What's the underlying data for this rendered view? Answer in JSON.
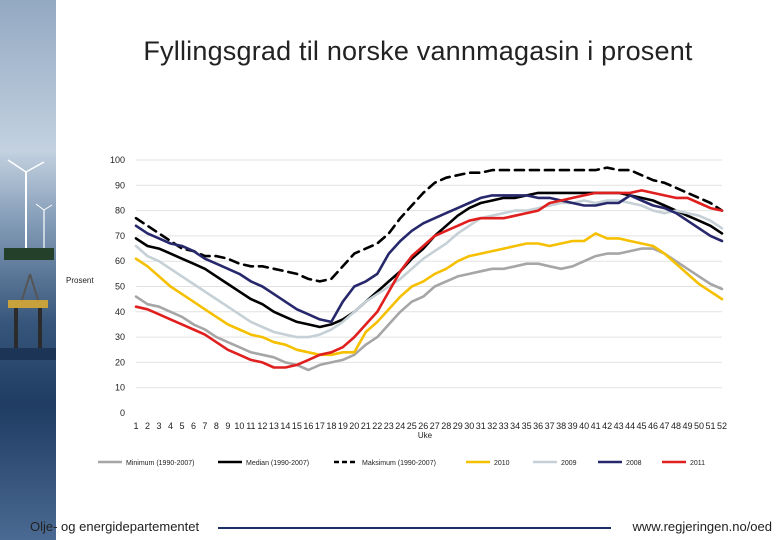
{
  "title": "Fyllingsgrad til norske vannmagasin i prosent",
  "footer": {
    "left": "Olje- og energidepartementet",
    "right": "www.regjeringen.no/oed"
  },
  "chart_data": {
    "type": "line",
    "title": "Fyllingsgrad til norske vannmagasin i prosent",
    "xlabel": "Uke",
    "ylabel": "Prosent",
    "ylim": [
      0,
      100
    ],
    "yticks": [
      0,
      10,
      20,
      30,
      40,
      50,
      60,
      70,
      80,
      90,
      100
    ],
    "x": [
      1,
      2,
      3,
      4,
      5,
      6,
      7,
      8,
      9,
      10,
      11,
      12,
      13,
      14,
      15,
      16,
      17,
      18,
      19,
      20,
      21,
      22,
      23,
      24,
      25,
      26,
      27,
      28,
      29,
      30,
      31,
      32,
      33,
      34,
      35,
      36,
      37,
      38,
      39,
      40,
      41,
      42,
      43,
      44,
      45,
      46,
      47,
      48,
      49,
      50,
      51,
      52
    ],
    "legend_position": "bottom",
    "series": [
      {
        "name": "Minimum (1990-2007)",
        "color": "#a6a6a6",
        "dash": false,
        "values": [
          46,
          43,
          42,
          40,
          38,
          35,
          33,
          30,
          28,
          26,
          24,
          23,
          22,
          20,
          19,
          17,
          19,
          20,
          21,
          23,
          27,
          30,
          35,
          40,
          44,
          46,
          50,
          52,
          54,
          55,
          56,
          57,
          57,
          58,
          59,
          59,
          58,
          57,
          58,
          60,
          62,
          63,
          63,
          64,
          65,
          65,
          63,
          60,
          57,
          54,
          51,
          49
        ]
      },
      {
        "name": "Median (1990-2007)",
        "color": "#000000",
        "dash": false,
        "values": [
          69,
          66,
          65,
          63,
          61,
          59,
          57,
          54,
          51,
          48,
          45,
          43,
          40,
          38,
          36,
          35,
          34,
          35,
          37,
          40,
          44,
          48,
          52,
          56,
          61,
          65,
          70,
          74,
          78,
          81,
          83,
          84,
          85,
          85,
          86,
          87,
          87,
          87,
          87,
          87,
          87,
          87,
          87,
          86,
          85,
          84,
          82,
          80,
          78,
          76,
          74,
          71
        ]
      },
      {
        "name": "Maksimum (1990-2007)",
        "color": "#000000",
        "dash": true,
        "values": [
          77,
          74,
          71,
          68,
          65,
          64,
          62,
          62,
          61,
          59,
          58,
          58,
          57,
          56,
          55,
          53,
          52,
          53,
          58,
          63,
          65,
          67,
          71,
          77,
          82,
          87,
          91,
          93,
          94,
          95,
          95,
          96,
          96,
          96,
          96,
          96,
          96,
          96,
          96,
          96,
          96,
          97,
          96,
          96,
          94,
          92,
          91,
          89,
          87,
          85,
          83,
          80
        ]
      },
      {
        "name": "2010",
        "color": "#f5c000",
        "dash": false,
        "values": [
          61,
          58,
          54,
          50,
          47,
          44,
          41,
          38,
          35,
          33,
          31,
          30,
          28,
          27,
          25,
          24,
          23,
          23,
          24,
          24,
          32,
          36,
          41,
          46,
          50,
          52,
          55,
          57,
          60,
          62,
          63,
          64,
          65,
          66,
          67,
          67,
          66,
          67,
          68,
          68,
          71,
          69,
          69,
          68,
          67,
          66,
          63,
          59,
          55,
          51,
          48,
          45
        ]
      },
      {
        "name": "2009",
        "color": "#c5d1d6",
        "dash": false,
        "values": [
          66,
          62,
          60,
          57,
          54,
          51,
          48,
          45,
          42,
          39,
          36,
          34,
          32,
          31,
          30,
          30,
          31,
          33,
          36,
          40,
          44,
          47,
          50,
          53,
          57,
          61,
          64,
          67,
          71,
          74,
          77,
          78,
          79,
          80,
          80,
          81,
          82,
          83,
          83,
          84,
          83,
          84,
          84,
          83,
          82,
          80,
          79,
          80,
          79,
          78,
          76,
          73
        ]
      },
      {
        "name": "2008",
        "color": "#26286b",
        "dash": false,
        "values": [
          74,
          71,
          69,
          67,
          66,
          64,
          61,
          59,
          57,
          55,
          52,
          50,
          47,
          44,
          41,
          39,
          37,
          36,
          44,
          50,
          52,
          55,
          63,
          68,
          72,
          75,
          77,
          79,
          81,
          83,
          85,
          86,
          86,
          86,
          86,
          85,
          85,
          84,
          83,
          82,
          82,
          83,
          83,
          86,
          84,
          82,
          81,
          79,
          76,
          73,
          70,
          68
        ]
      },
      {
        "name": "2011",
        "color": "#e01f1f",
        "dash": false,
        "values": [
          42,
          41,
          39,
          37,
          35,
          33,
          31,
          28,
          25,
          23,
          21,
          20,
          18,
          18,
          19,
          21,
          23,
          24,
          26,
          30,
          35,
          40,
          48,
          56,
          62,
          66,
          70,
          72,
          74,
          76,
          77,
          77,
          77,
          78,
          79,
          80,
          83,
          84,
          85,
          86,
          87,
          87,
          87,
          87,
          88,
          87,
          86,
          85,
          85,
          83,
          81,
          80
        ]
      }
    ]
  }
}
